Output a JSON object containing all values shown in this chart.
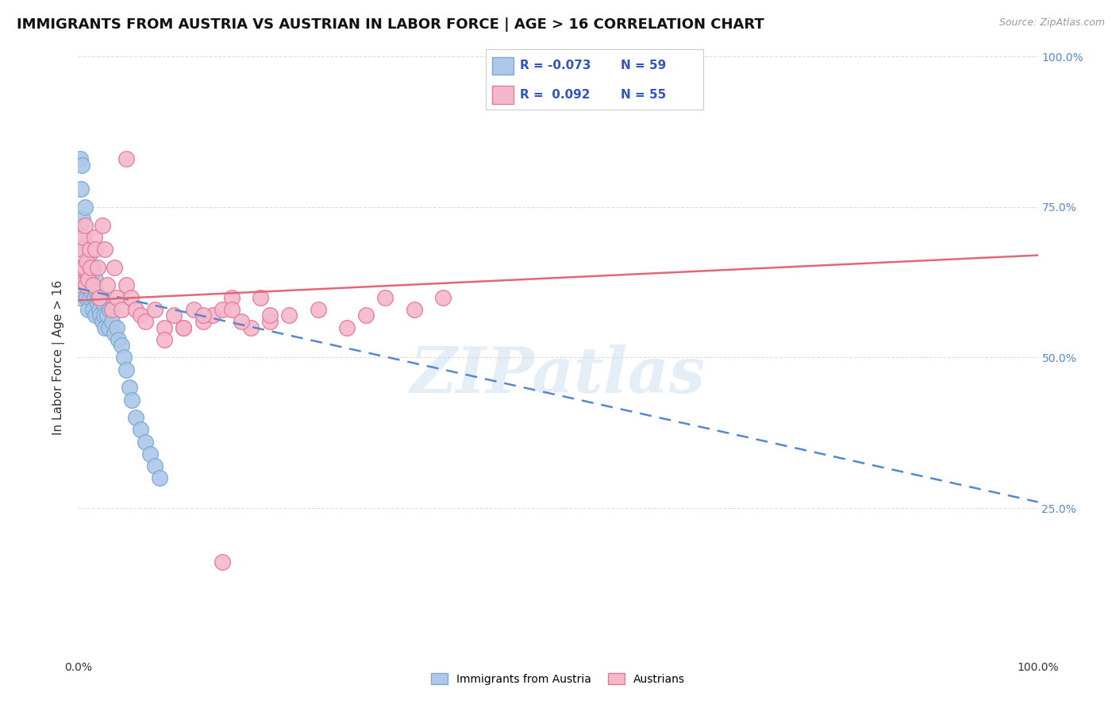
{
  "title": "IMMIGRANTS FROM AUSTRIA VS AUSTRIAN IN LABOR FORCE | AGE > 16 CORRELATION CHART",
  "source_text": "Source: ZipAtlas.com",
  "ylabel": "In Labor Force | Age > 16",
  "xlim": [
    0,
    1.0
  ],
  "ylim": [
    0,
    1.0
  ],
  "legend_R_blue": "-0.073",
  "legend_N_blue": "59",
  "legend_R_pink": "0.092",
  "legend_N_pink": "55",
  "legend_label_blue": "Immigrants from Austria",
  "legend_label_pink": "Austrians",
  "blue_color": "#adc8e8",
  "pink_color": "#f5b8cb",
  "blue_edge": "#7aaad0",
  "pink_edge": "#e87898",
  "trend_blue_color": "#5588cc",
  "trend_pink_color": "#e06878",
  "watermark_text": "ZIPatlas",
  "blue_scatter_x": [
    0.001,
    0.002,
    0.002,
    0.003,
    0.003,
    0.004,
    0.004,
    0.005,
    0.005,
    0.006,
    0.006,
    0.007,
    0.007,
    0.008,
    0.008,
    0.009,
    0.009,
    0.01,
    0.01,
    0.011,
    0.011,
    0.012,
    0.012,
    0.013,
    0.014,
    0.015,
    0.015,
    0.016,
    0.017,
    0.018,
    0.018,
    0.019,
    0.02,
    0.021,
    0.022,
    0.023,
    0.024,
    0.025,
    0.026,
    0.027,
    0.028,
    0.03,
    0.032,
    0.033,
    0.035,
    0.038,
    0.04,
    0.042,
    0.045,
    0.048,
    0.05,
    0.053,
    0.056,
    0.06,
    0.065,
    0.07,
    0.075,
    0.08,
    0.085
  ],
  "blue_scatter_y": [
    0.6,
    0.83,
    0.72,
    0.78,
    0.65,
    0.68,
    0.82,
    0.63,
    0.73,
    0.61,
    0.7,
    0.65,
    0.75,
    0.62,
    0.68,
    0.64,
    0.6,
    0.63,
    0.58,
    0.62,
    0.67,
    0.6,
    0.65,
    0.63,
    0.61,
    0.58,
    0.65,
    0.62,
    0.6,
    0.63,
    0.57,
    0.61,
    0.59,
    0.6,
    0.58,
    0.57,
    0.6,
    0.56,
    0.59,
    0.57,
    0.55,
    0.57,
    0.55,
    0.58,
    0.56,
    0.54,
    0.55,
    0.53,
    0.52,
    0.5,
    0.48,
    0.45,
    0.43,
    0.4,
    0.38,
    0.36,
    0.34,
    0.32,
    0.3
  ],
  "pink_scatter_x": [
    0.002,
    0.003,
    0.004,
    0.005,
    0.006,
    0.007,
    0.008,
    0.009,
    0.01,
    0.012,
    0.013,
    0.015,
    0.017,
    0.018,
    0.02,
    0.022,
    0.025,
    0.028,
    0.03,
    0.035,
    0.038,
    0.04,
    0.045,
    0.05,
    0.055,
    0.06,
    0.065,
    0.07,
    0.08,
    0.09,
    0.1,
    0.11,
    0.12,
    0.13,
    0.14,
    0.15,
    0.16,
    0.18,
    0.2,
    0.22,
    0.25,
    0.28,
    0.3,
    0.32,
    0.35,
    0.38,
    0.2,
    0.16,
    0.17,
    0.19,
    0.09,
    0.11,
    0.13,
    0.15,
    0.05
  ],
  "pink_scatter_y": [
    0.65,
    0.68,
    0.62,
    0.7,
    0.65,
    0.72,
    0.62,
    0.66,
    0.63,
    0.68,
    0.65,
    0.62,
    0.7,
    0.68,
    0.65,
    0.6,
    0.72,
    0.68,
    0.62,
    0.58,
    0.65,
    0.6,
    0.58,
    0.62,
    0.6,
    0.58,
    0.57,
    0.56,
    0.58,
    0.55,
    0.57,
    0.55,
    0.58,
    0.56,
    0.57,
    0.58,
    0.6,
    0.55,
    0.56,
    0.57,
    0.58,
    0.55,
    0.57,
    0.6,
    0.58,
    0.6,
    0.57,
    0.58,
    0.56,
    0.6,
    0.53,
    0.55,
    0.57,
    0.16,
    0.83
  ],
  "trend_blue_start_y": 0.615,
  "trend_blue_end_y": 0.26,
  "trend_pink_start_y": 0.595,
  "trend_pink_end_y": 0.67,
  "grid_color": "#dddddd",
  "background_color": "#ffffff",
  "title_fontsize": 13,
  "axis_label_fontsize": 11,
  "tick_fontsize": 10
}
